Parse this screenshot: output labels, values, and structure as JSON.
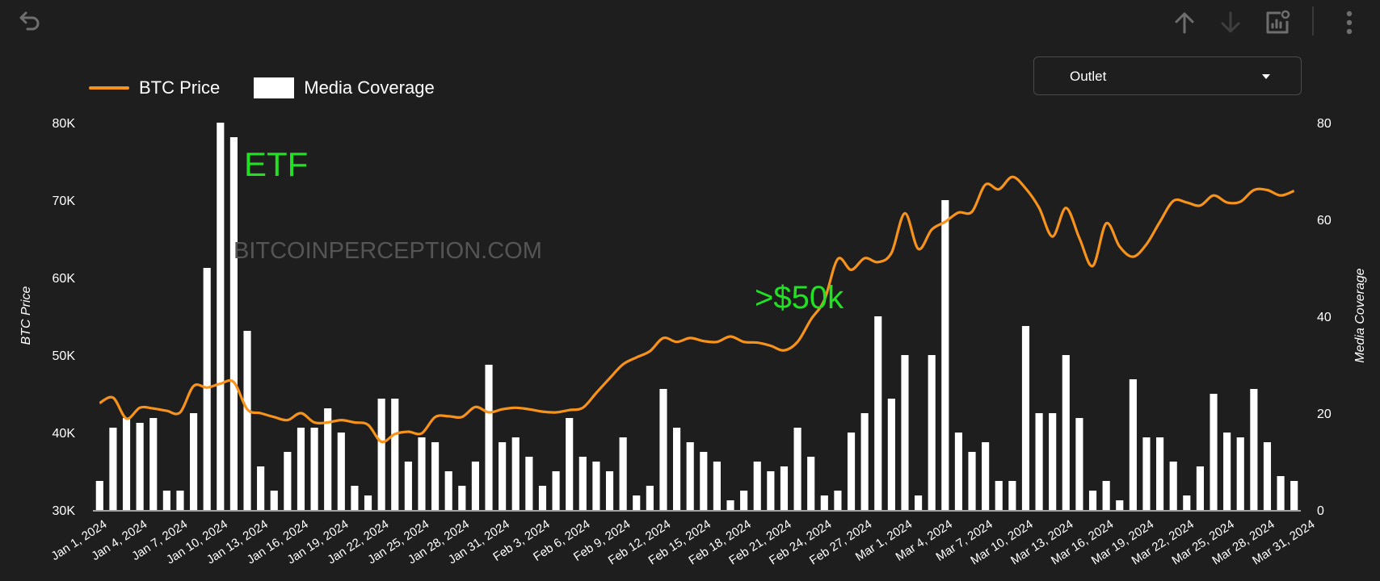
{
  "toolbar": {
    "undo_icon": "undo-icon",
    "up_icon": "arrow-up-icon",
    "down_icon": "arrow-down-icon",
    "chart_settings_icon": "chart-settings-icon",
    "more_icon": "more-vertical-icon"
  },
  "legend": {
    "line_label": "BTC Price",
    "bar_label": "Media Coverage"
  },
  "dropdown": {
    "label": "Outlet"
  },
  "colors": {
    "price_line": "#f7931a",
    "bars": "#ffffff",
    "annotation": "#22e022",
    "background": "#1e1e1e"
  },
  "chart_data": {
    "type": "bar",
    "xlabel": "",
    "ylabel_left": "BTC Price",
    "ylabel_right": "Media Coverage",
    "ylim_left": [
      30000,
      80000
    ],
    "ylim_right": [
      0,
      80
    ],
    "left_ticks": [
      "30K",
      "40K",
      "50K",
      "60K",
      "70K",
      "80K"
    ],
    "right_ticks": [
      "0",
      "20",
      "40",
      "60",
      "80"
    ],
    "x_tick_labels": [
      "Jan 1, 2024",
      "Jan 4, 2024",
      "Jan 7, 2024",
      "Jan 10, 2024",
      "Jan 13, 2024",
      "Jan 16, 2024",
      "Jan 19, 2024",
      "Jan 22, 2024",
      "Jan 25, 2024",
      "Jan 28, 2024",
      "Jan 31, 2024",
      "Feb 3, 2024",
      "Feb 6, 2024",
      "Feb 9, 2024",
      "Feb 12, 2024",
      "Feb 15, 2024",
      "Feb 18, 2024",
      "Feb 21, 2024",
      "Feb 24, 2024",
      "Feb 27, 2024",
      "Mar 1, 2024",
      "Mar 4, 2024",
      "Mar 7, 2024",
      "Mar 10, 2024",
      "Mar 13, 2024",
      "Mar 16, 2024",
      "Mar 19, 2024",
      "Mar 22, 2024",
      "Mar 25, 2024",
      "Mar 28, 2024",
      "Mar 31, 2024"
    ],
    "start_date": "2024-01-01",
    "series": [
      {
        "name": "Media Coverage",
        "type": "bar",
        "axis": "right",
        "values": [
          6,
          17,
          19,
          18,
          19,
          4,
          4,
          20,
          50,
          80,
          77,
          37,
          9,
          4,
          12,
          17,
          17,
          21,
          16,
          5,
          3,
          23,
          23,
          10,
          15,
          14,
          8,
          5,
          10,
          30,
          14,
          15,
          11,
          5,
          8,
          19,
          11,
          10,
          8,
          15,
          3,
          5,
          25,
          17,
          14,
          12,
          10,
          2,
          4,
          10,
          8,
          9,
          17,
          11,
          3,
          4,
          16,
          20,
          40,
          23,
          32,
          3,
          32,
          64,
          16,
          12,
          14,
          6,
          6,
          38,
          20,
          20,
          32,
          19,
          4,
          6,
          2,
          27,
          15,
          15,
          10,
          3,
          9,
          24,
          16,
          15,
          25,
          14,
          7,
          6
        ]
      },
      {
        "name": "BTC Price",
        "type": "line",
        "axis": "left",
        "values": [
          43800,
          44500,
          41800,
          43200,
          43100,
          42800,
          42600,
          46000,
          45800,
          46300,
          46500,
          43000,
          42500,
          42000,
          41600,
          42500,
          41300,
          41300,
          41600,
          41300,
          41000,
          38800,
          39800,
          40100,
          39900,
          42000,
          42100,
          42000,
          43300,
          42600,
          43000,
          43200,
          43000,
          42700,
          42600,
          42900,
          43200,
          45100,
          47000,
          48800,
          49700,
          50500,
          52200,
          51700,
          52200,
          51800,
          51700,
          52400,
          51700,
          51600,
          51200,
          50600,
          51700,
          54600,
          57100,
          62400,
          61000,
          62500,
          62000,
          63200,
          68300,
          63700,
          66200,
          67200,
          68400,
          68500,
          72000,
          71400,
          73000,
          71500,
          69000,
          65300,
          69000,
          65100,
          61500,
          67000,
          64000,
          62700,
          64300,
          67200,
          69900,
          69700,
          69300,
          70600,
          69700,
          69800,
          71300,
          71300,
          70600,
          71200
        ]
      }
    ],
    "annotations": [
      "ETF",
      ">$50k"
    ],
    "watermark": "BITCOINPERCEPTION.COM",
    "grid": false,
    "legend_position": "top-left"
  }
}
